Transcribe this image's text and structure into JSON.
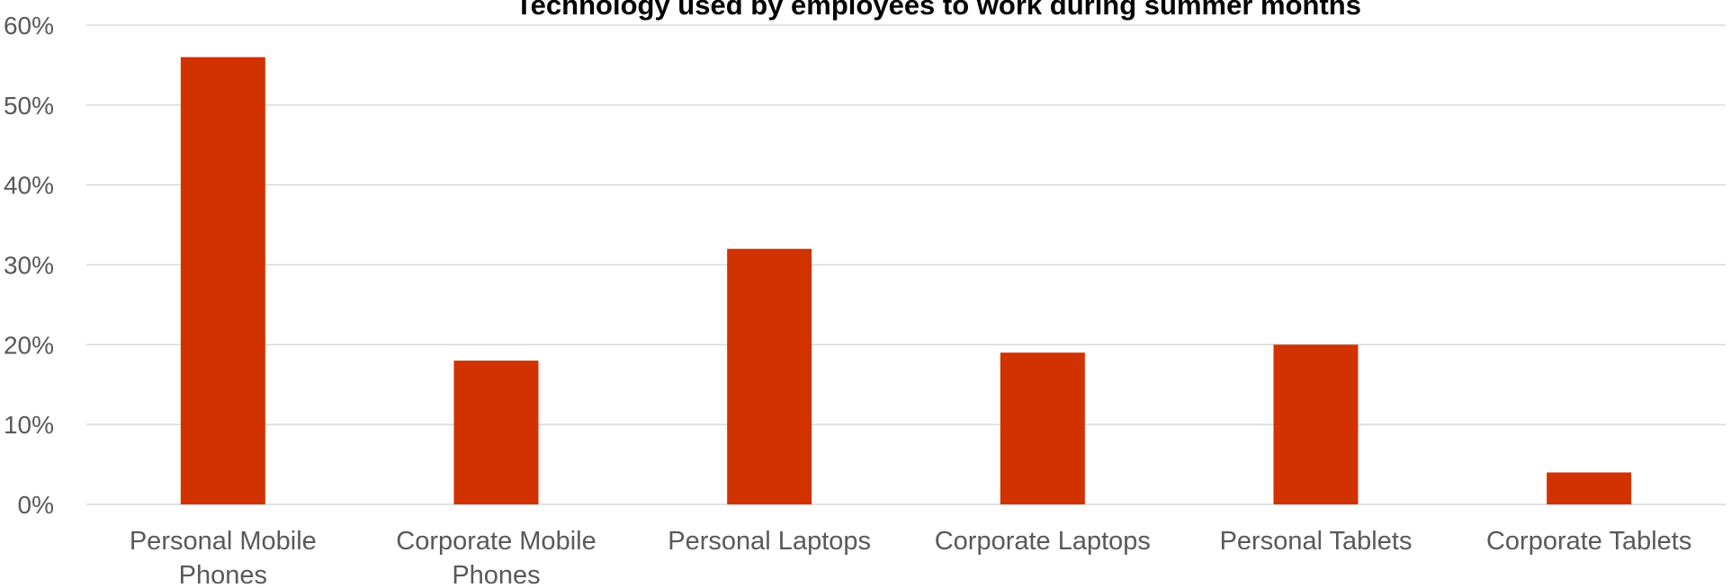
{
  "chart_data": {
    "type": "bar",
    "title": "Technology used by employees to work during summer months",
    "xlabel": "",
    "ylabel": "",
    "categories": [
      [
        "Personal Mobile",
        "Phones"
      ],
      [
        "Corporate Mobile",
        "Phones"
      ],
      [
        "Personal Laptops"
      ],
      [
        "Corporate Laptops"
      ],
      [
        "Personal Tablets"
      ],
      [
        "Corporate Tablets"
      ]
    ],
    "values": [
      56,
      18,
      32,
      19,
      20,
      4
    ],
    "ylim": [
      0,
      60
    ],
    "yticks": [
      0,
      10,
      20,
      30,
      40,
      50,
      60
    ],
    "ytick_labels": [
      "0%",
      "10%",
      "20%",
      "30%",
      "40%",
      "50%",
      "60%"
    ],
    "grid": true,
    "legend": "none",
    "colors": {
      "bar": "#d13200",
      "grid": "#d9d9d9",
      "text": "#595959"
    }
  }
}
